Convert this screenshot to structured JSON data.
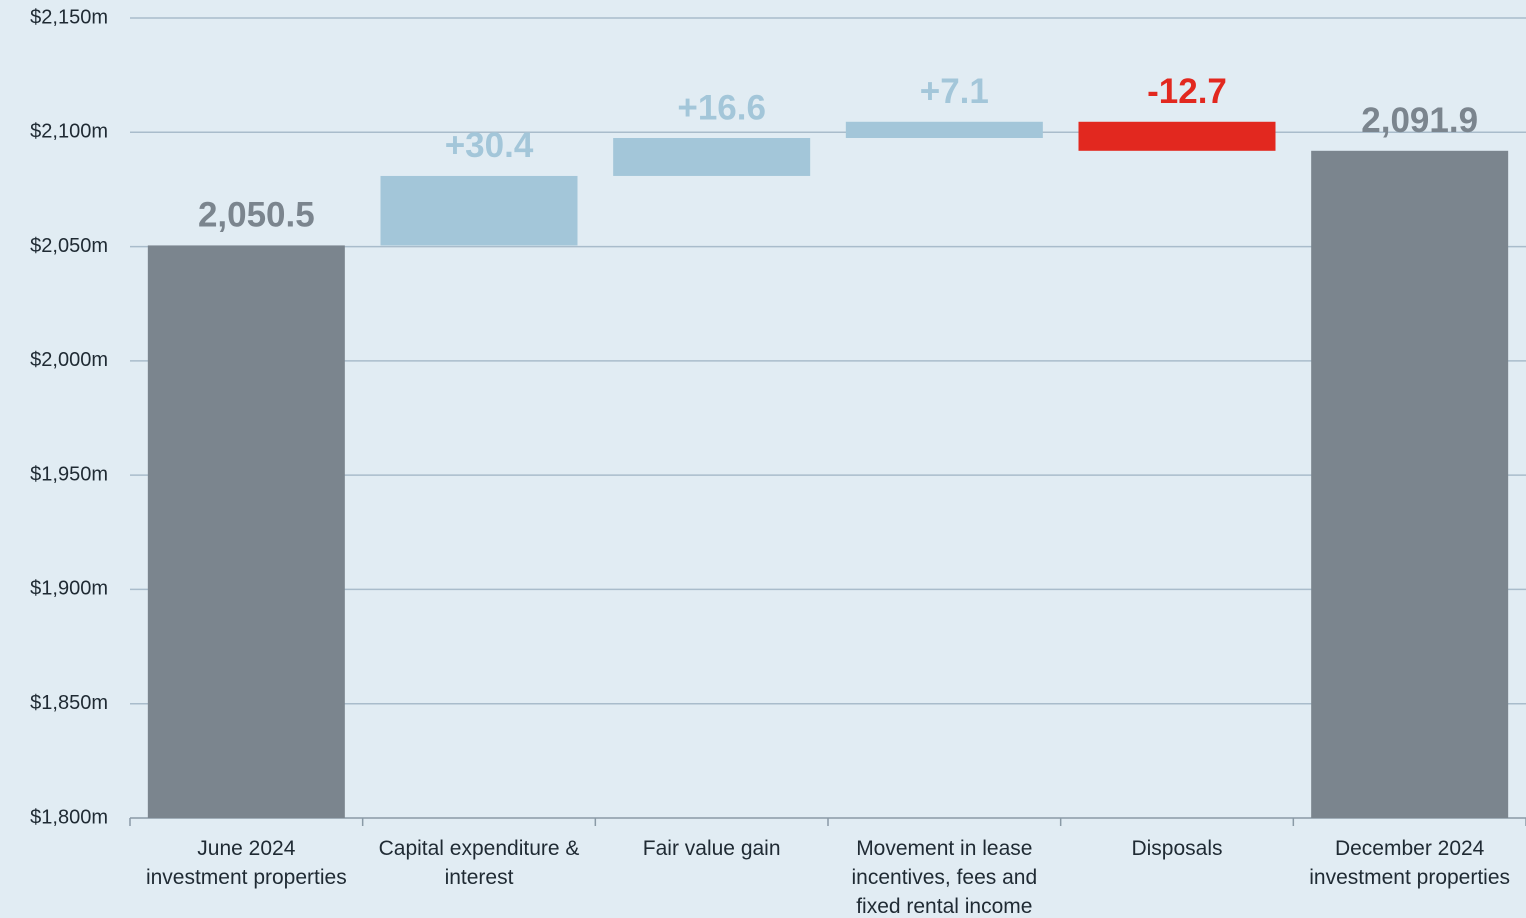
{
  "chart_data": {
    "type": "waterfall",
    "categories": [
      "June 2024\ninvestment properties",
      "Capital expenditure &\ninterest",
      "Fair value gain",
      "Movement in lease\nincentives, fees and\nfixed rental income",
      "Disposals",
      "December 2024\ninvestment properties"
    ],
    "values": [
      2050.5,
      30.4,
      16.6,
      7.1,
      -12.7,
      2091.9
    ],
    "value_labels": [
      "2,050.5",
      "+30.4",
      "+16.6",
      "+7.1",
      "-12.7",
      "2,091.9"
    ],
    "measures": [
      "absolute",
      "relative",
      "relative",
      "relative",
      "relative",
      "absolute"
    ],
    "colors": {
      "total": "#7b858e",
      "increase": "#a3c6d9",
      "decrease": "#e2281f"
    },
    "ylim": [
      1800,
      2150
    ],
    "yticks": [
      {
        "value": 1800,
        "label": "$1,800m"
      },
      {
        "value": 1850,
        "label": "$1,850m"
      },
      {
        "value": 1900,
        "label": "$1,900m"
      },
      {
        "value": 1950,
        "label": "$1,950m"
      },
      {
        "value": 2000,
        "label": "$2,000m"
      },
      {
        "value": 2050,
        "label": "$2,050m"
      },
      {
        "value": 2100,
        "label": "$2,100m"
      },
      {
        "value": 2150,
        "label": "$2,150m"
      }
    ],
    "grid": true
  }
}
